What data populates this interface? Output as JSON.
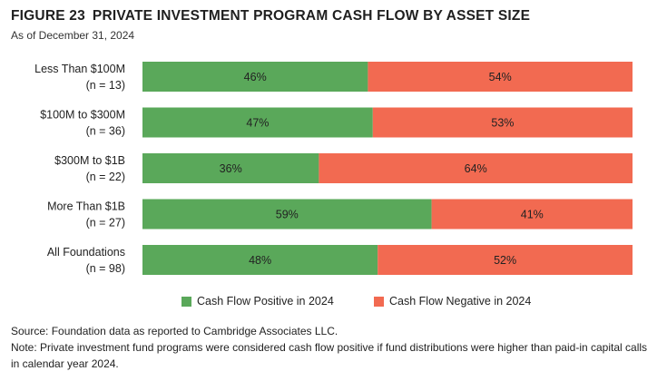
{
  "figure": {
    "number": "FIGURE 23",
    "title": "PRIVATE INVESTMENT PROGRAM CASH FLOW BY ASSET SIZE",
    "subtitle": "As of December 31, 2024"
  },
  "colors": {
    "positive": "#5aa85a",
    "negative": "#f26a51",
    "label_text": "#222222"
  },
  "chart_data": {
    "type": "bar",
    "orientation": "horizontal",
    "stacked": true,
    "percent_stacked": true,
    "categories": [
      {
        "label": "Less Than $100M",
        "n": "(n = 13)"
      },
      {
        "label": "$100M to $300M",
        "n": "(n = 36)"
      },
      {
        "label": "$300M to $1B",
        "n": "(n = 22)"
      },
      {
        "label": "More Than $1B",
        "n": "(n = 27)"
      },
      {
        "label": "All Foundations",
        "n": "(n = 98)"
      }
    ],
    "series": [
      {
        "name": "Cash Flow Positive in 2024",
        "values": [
          46,
          47,
          36,
          59,
          48
        ],
        "labels": [
          "46%",
          "47%",
          "36%",
          "59%",
          "48%"
        ]
      },
      {
        "name": "Cash Flow Negative in 2024",
        "values": [
          54,
          53,
          64,
          41,
          52
        ],
        "labels": [
          "54%",
          "53%",
          "64%",
          "41%",
          "52%"
        ]
      }
    ],
    "xlim": [
      0,
      100
    ],
    "grid": false,
    "legend_position": "bottom-center"
  },
  "footnotes": {
    "source": "Source: Foundation data as reported to Cambridge Associates LLC.",
    "note": "Note: Private investment fund programs were considered cash flow positive if fund distributions were higher than paid-in capital calls in calendar year 2024."
  }
}
